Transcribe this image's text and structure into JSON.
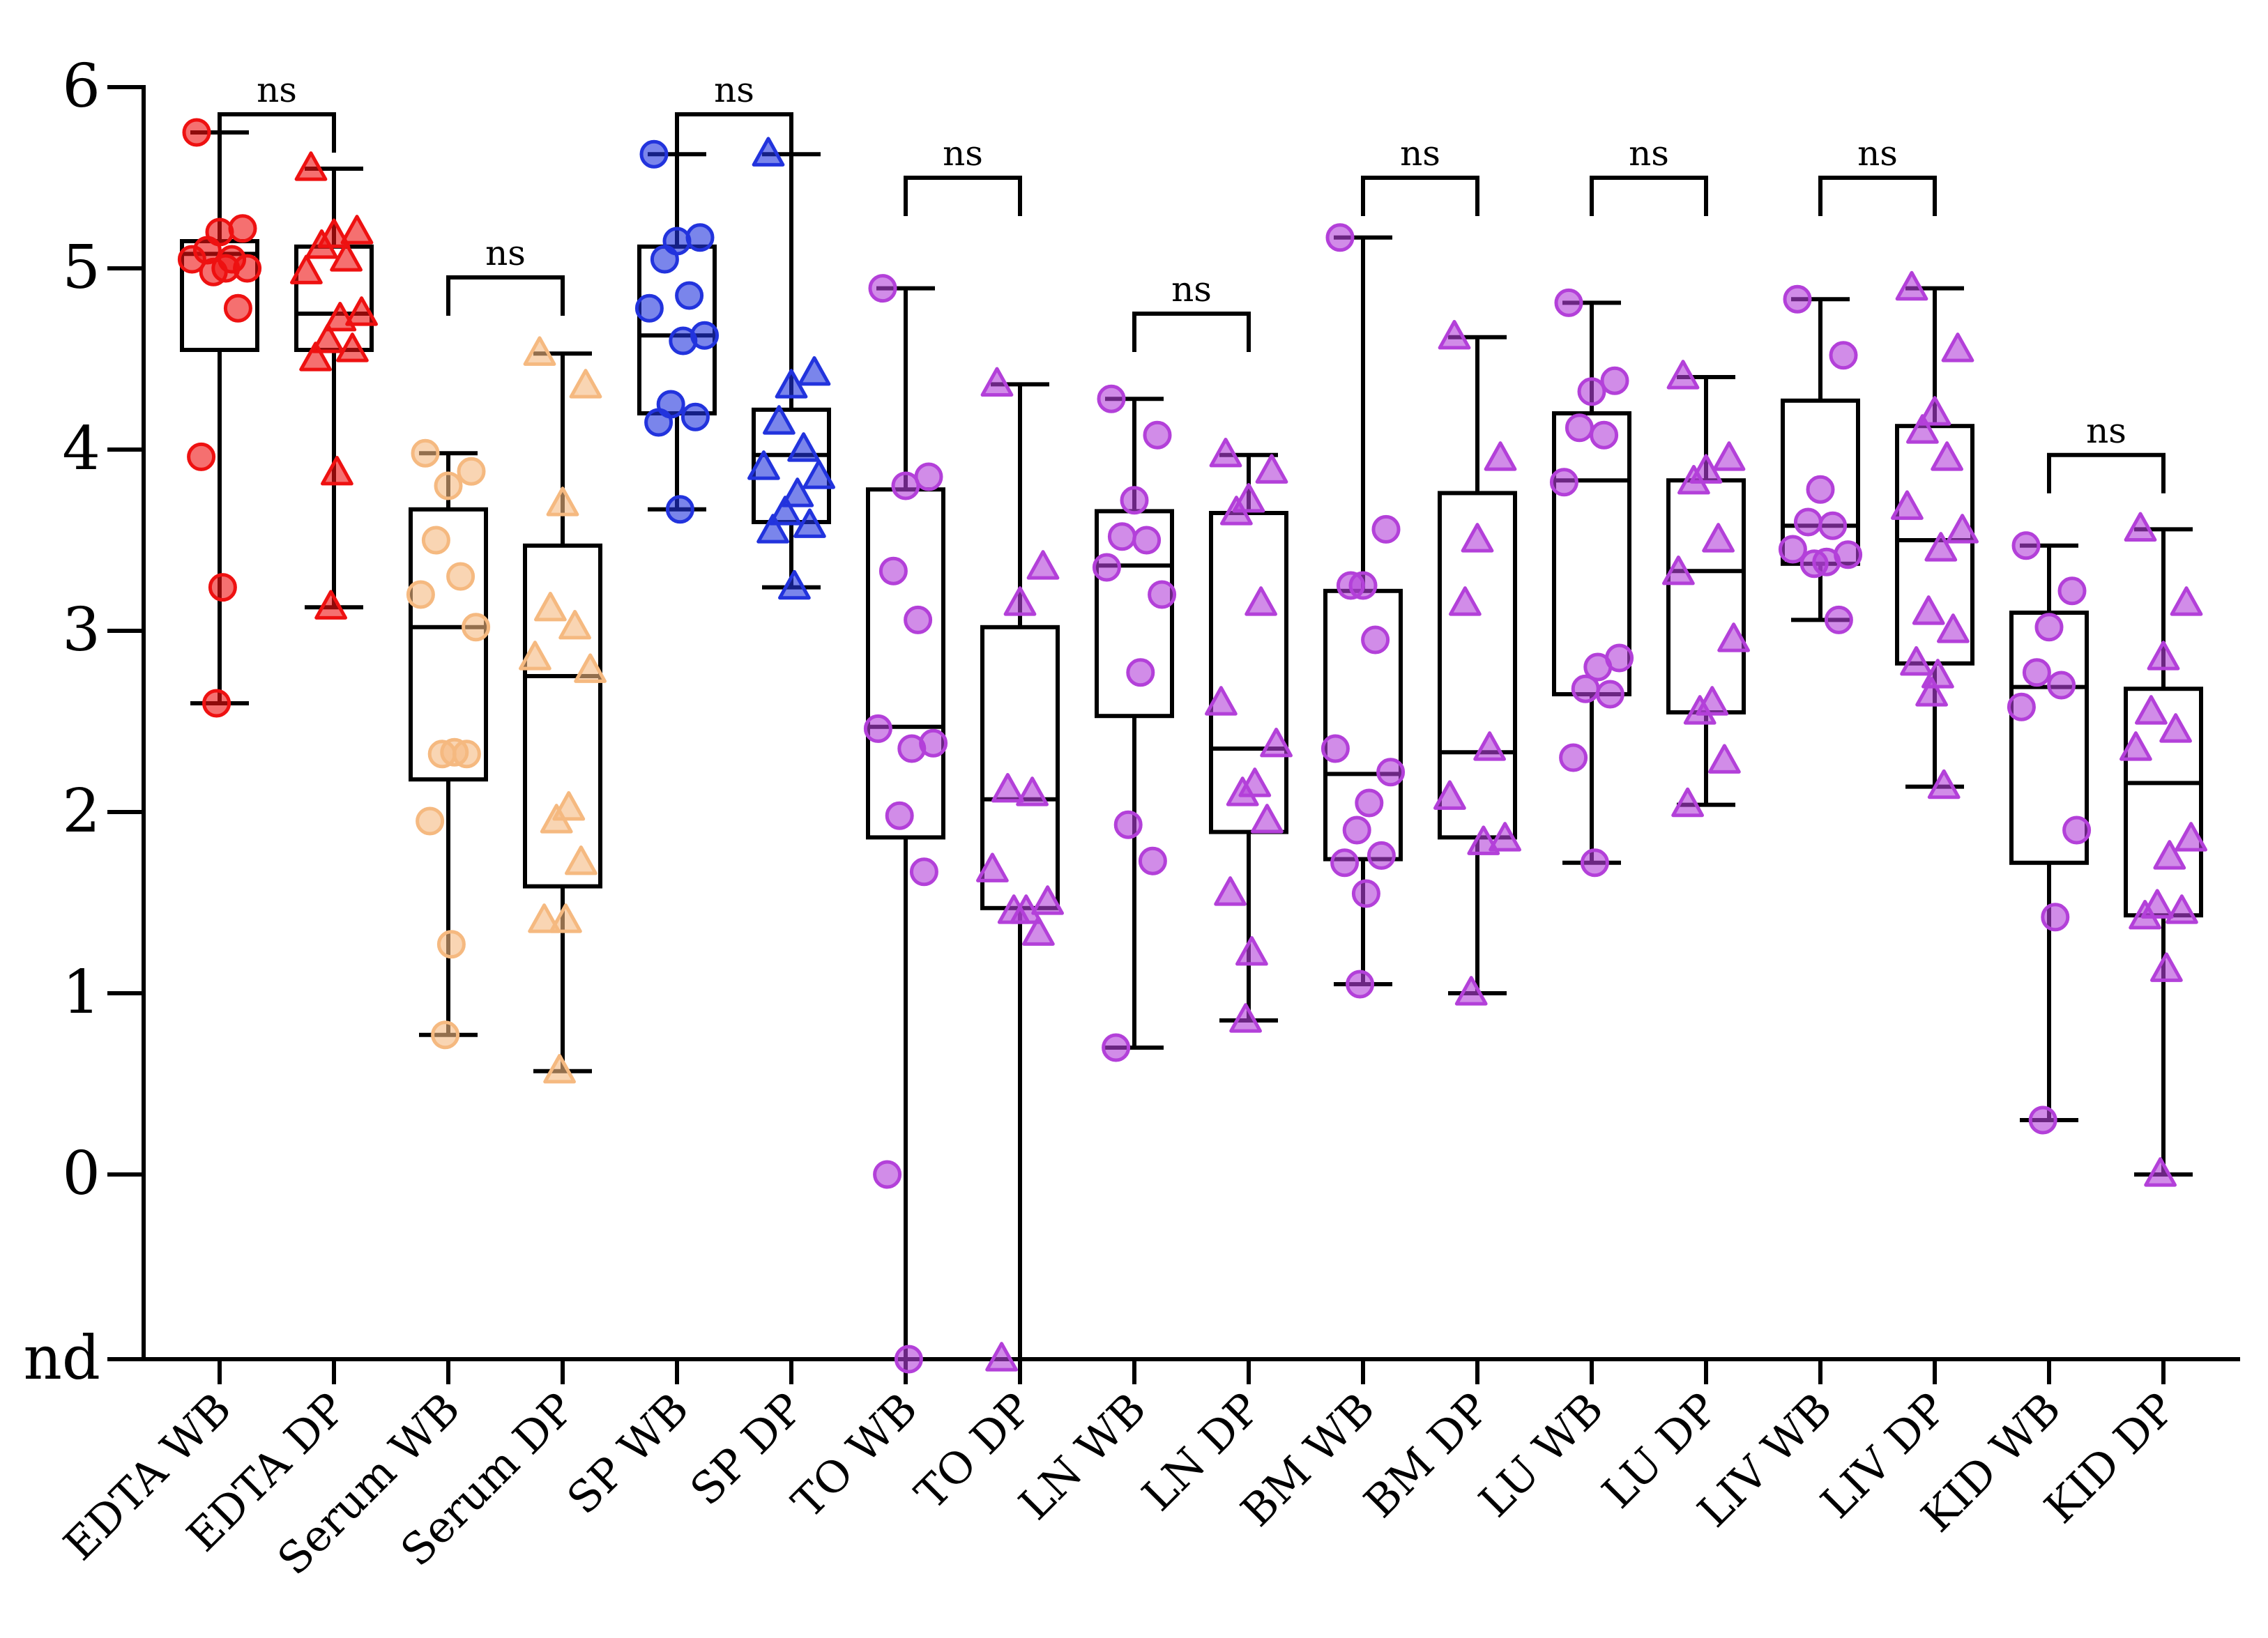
{
  "chart_data": {
    "type": "box",
    "ylim": [
      "nd",
      6
    ],
    "yticks": [
      "nd",
      "0",
      "1",
      "2",
      "3",
      "4",
      "5",
      "6"
    ],
    "nd_value": -1,
    "categories": [
      "EDTA WB",
      "EDTA DP",
      "Serum WB",
      "Serum DP",
      "SP WB",
      "SP DP",
      "TO WB",
      "TO DP",
      "LN WB",
      "LN DP",
      "BM WB",
      "BM DP",
      "LU WB",
      "LU DP",
      "LIV WB",
      "LIV DP",
      "KID WB",
      "KID DP"
    ],
    "groups": [
      {
        "label": "EDTA WB",
        "marker": "circle",
        "color": "#ee1111",
        "min": 2.6,
        "q1": 4.55,
        "median": 5.08,
        "q3": 5.15,
        "max": 5.75,
        "points": [
          5.75,
          5.22,
          5.2,
          5.1,
          5.05,
          5.05,
          5.0,
          5.0,
          4.98,
          4.78,
          3.96,
          3.24,
          2.6
        ]
      },
      {
        "label": "EDTA DP",
        "marker": "triangle",
        "color": "#ee1111",
        "min": 3.13,
        "q1": 4.55,
        "median": 4.75,
        "q3": 5.12,
        "max": 5.55,
        "points": [
          5.55,
          5.2,
          5.18,
          5.12,
          5.05,
          4.98,
          4.75,
          4.72,
          4.6,
          4.55,
          4.5,
          3.87,
          3.13
        ]
      },
      {
        "label": "Serum WB",
        "marker": "circle",
        "color": "#f5b980",
        "min": 0.77,
        "q1": 2.18,
        "median": 3.02,
        "q3": 3.67,
        "max": 3.98,
        "points": [
          3.98,
          3.88,
          3.8,
          3.5,
          3.3,
          3.2,
          3.02,
          2.33,
          2.32,
          2.32,
          1.95,
          1.27,
          0.77
        ]
      },
      {
        "label": "Serum DP",
        "marker": "triangle",
        "color": "#f5b980",
        "min": 0.57,
        "q1": 1.59,
        "median": 2.75,
        "q3": 3.47,
        "max": 4.53,
        "points": [
          4.53,
          4.35,
          3.7,
          3.12,
          3.02,
          2.85,
          2.78,
          2.02,
          1.95,
          1.72,
          1.4,
          1.4,
          0.57
        ]
      },
      {
        "label": "SP WB",
        "marker": "circle",
        "color": "#2233dd",
        "min": 3.67,
        "q1": 4.2,
        "median": 4.63,
        "q3": 5.12,
        "max": 5.63,
        "points": [
          5.63,
          5.17,
          5.15,
          5.05,
          4.85,
          4.78,
          4.63,
          4.6,
          4.25,
          4.18,
          4.15,
          3.67
        ]
      },
      {
        "label": "SP DP",
        "marker": "triangle",
        "color": "#2233dd",
        "min": 3.24,
        "q1": 3.6,
        "median": 3.97,
        "q3": 4.22,
        "max": 5.63,
        "points": [
          5.63,
          4.42,
          4.35,
          4.15,
          4.0,
          3.9,
          3.85,
          3.75,
          3.65,
          3.58,
          3.55,
          3.24
        ]
      },
      {
        "label": "TO WB",
        "marker": "circle",
        "color": "#b340d9",
        "min": -1,
        "q1": 1.86,
        "median": 2.47,
        "q3": 3.78,
        "max": 4.89,
        "points": [
          4.89,
          3.85,
          3.8,
          3.33,
          3.06,
          2.46,
          2.38,
          2.35,
          1.98,
          1.67,
          0.0,
          -1
        ]
      },
      {
        "label": "TO DP",
        "marker": "triangle",
        "color": "#b340d9",
        "min": -1,
        "q1": 1.47,
        "median": 2.07,
        "q3": 3.02,
        "max": 4.36,
        "points": [
          4.36,
          3.35,
          3.15,
          2.12,
          2.1,
          1.68,
          1.5,
          1.45,
          1.45,
          1.33,
          -1
        ]
      },
      {
        "label": "LN WB",
        "marker": "circle",
        "color": "#b340d9",
        "min": 0.7,
        "q1": 2.53,
        "median": 3.36,
        "q3": 3.66,
        "max": 4.28,
        "points": [
          4.28,
          4.08,
          3.72,
          3.52,
          3.5,
          3.35,
          3.2,
          2.77,
          1.93,
          1.73,
          0.7
        ]
      },
      {
        "label": "LN DP",
        "marker": "triangle",
        "color": "#b340d9",
        "min": 0.85,
        "q1": 1.89,
        "median": 2.35,
        "q3": 3.65,
        "max": 3.97,
        "points": [
          3.97,
          3.88,
          3.72,
          3.65,
          3.15,
          2.6,
          2.37,
          2.15,
          2.1,
          1.95,
          1.55,
          1.22,
          0.85
        ]
      },
      {
        "label": "BM WB",
        "marker": "circle",
        "color": "#b340d9",
        "min": 1.05,
        "q1": 1.74,
        "median": 2.21,
        "q3": 3.22,
        "max": 5.17,
        "points": [
          5.17,
          3.56,
          3.25,
          3.25,
          2.95,
          2.35,
          2.22,
          2.05,
          1.9,
          1.76,
          1.72,
          1.55,
          1.05
        ]
      },
      {
        "label": "BM DP",
        "marker": "triangle",
        "color": "#b340d9",
        "min": 1.0,
        "q1": 1.86,
        "median": 2.33,
        "q3": 3.76,
        "max": 4.62,
        "points": [
          4.62,
          3.95,
          3.5,
          3.15,
          2.35,
          2.08,
          1.85,
          1.83,
          1.0
        ]
      },
      {
        "label": "LU WB",
        "marker": "circle",
        "color": "#b340d9",
        "min": 1.72,
        "q1": 2.65,
        "median": 3.83,
        "q3": 4.2,
        "max": 4.81,
        "points": [
          4.81,
          4.38,
          4.32,
          4.12,
          4.08,
          3.82,
          2.85,
          2.8,
          2.68,
          2.65,
          2.3,
          1.72
        ]
      },
      {
        "label": "LU DP",
        "marker": "triangle",
        "color": "#b340d9",
        "min": 2.04,
        "q1": 2.55,
        "median": 3.33,
        "q3": 3.83,
        "max": 4.4,
        "points": [
          4.4,
          3.95,
          3.88,
          3.82,
          3.5,
          3.32,
          2.95,
          2.6,
          2.55,
          2.28,
          2.04
        ]
      },
      {
        "label": "LIV WB",
        "marker": "circle",
        "color": "#b340d9",
        "min": 3.06,
        "q1": 3.37,
        "median": 3.58,
        "q3": 4.27,
        "max": 4.83,
        "points": [
          4.83,
          4.52,
          3.78,
          3.6,
          3.58,
          3.45,
          3.42,
          3.38,
          3.37,
          3.06
        ]
      },
      {
        "label": "LIV DP",
        "marker": "triangle",
        "color": "#b340d9",
        "min": 2.14,
        "q1": 2.82,
        "median": 3.5,
        "q3": 4.13,
        "max": 4.89,
        "points": [
          4.89,
          4.55,
          4.2,
          4.1,
          3.95,
          3.68,
          3.55,
          3.45,
          3.1,
          3.0,
          2.82,
          2.75,
          2.65,
          2.14
        ]
      },
      {
        "label": "KID WB",
        "marker": "circle",
        "color": "#b340d9",
        "min": 0.3,
        "q1": 1.72,
        "median": 2.69,
        "q3": 3.1,
        "max": 3.47,
        "points": [
          3.47,
          3.22,
          3.02,
          2.77,
          2.7,
          2.58,
          1.9,
          1.42,
          0.3
        ]
      },
      {
        "label": "KID DP",
        "marker": "triangle",
        "color": "#b340d9",
        "min": 0.0,
        "q1": 1.43,
        "median": 2.16,
        "q3": 2.68,
        "max": 3.56,
        "points": [
          3.56,
          3.15,
          2.85,
          2.55,
          2.45,
          2.35,
          1.85,
          1.75,
          1.48,
          1.45,
          1.42,
          1.13,
          0.0
        ]
      }
    ],
    "comparisons": [
      {
        "from": 0,
        "to": 1,
        "label": "ns",
        "level": 5.85
      },
      {
        "from": 2,
        "to": 3,
        "label": "ns",
        "level": 4.95
      },
      {
        "from": 4,
        "to": 5,
        "label": "ns",
        "level": 5.85
      },
      {
        "from": 6,
        "to": 7,
        "label": "ns",
        "level": 5.5
      },
      {
        "from": 8,
        "to": 9,
        "label": "ns",
        "level": 4.75
      },
      {
        "from": 10,
        "to": 11,
        "label": "ns",
        "level": 5.5
      },
      {
        "from": 12,
        "to": 13,
        "label": "ns",
        "level": 5.5
      },
      {
        "from": 14,
        "to": 15,
        "label": "ns",
        "level": 5.5
      },
      {
        "from": 16,
        "to": 17,
        "label": "ns",
        "level": 3.97
      }
    ]
  }
}
